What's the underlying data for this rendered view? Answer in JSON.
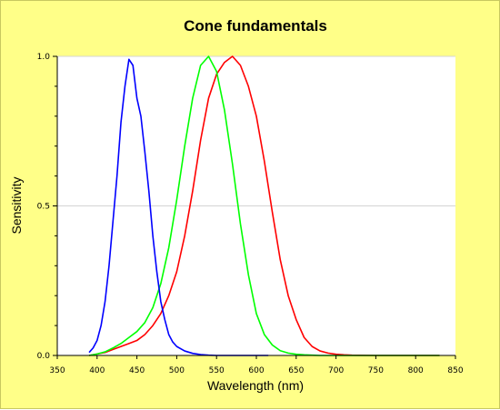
{
  "chart_data": {
    "type": "line",
    "title": "Cone fundamentals",
    "xlabel": "Wavelength (nm)",
    "ylabel": "Sensitivity",
    "xlim": [
      350,
      850
    ],
    "ylim": [
      0,
      1
    ],
    "x_ticks": [
      350,
      400,
      450,
      500,
      550,
      600,
      650,
      700,
      750,
      800,
      850
    ],
    "y_ticks": [
      {
        "value": 0,
        "label": "0.0"
      },
      {
        "value": 0.5,
        "label": "0.5"
      },
      {
        "value": 1,
        "label": "1.0"
      }
    ],
    "y_minor_ticks": [
      0.1,
      0.2,
      0.3,
      0.4,
      0.6,
      0.7,
      0.8,
      0.9
    ],
    "grid": true,
    "legend": "none",
    "series": [
      {
        "color": "#ff0000",
        "x": [
          390,
          400,
          410,
          420,
          430,
          440,
          450,
          460,
          470,
          480,
          490,
          500,
          510,
          520,
          530,
          540,
          550,
          560,
          570,
          580,
          590,
          600,
          610,
          620,
          630,
          640,
          650,
          660,
          670,
          680,
          690,
          700,
          710,
          720,
          750,
          800,
          830
        ],
        "y": [
          0.0,
          0.005,
          0.01,
          0.02,
          0.03,
          0.04,
          0.05,
          0.07,
          0.1,
          0.14,
          0.2,
          0.28,
          0.4,
          0.55,
          0.72,
          0.86,
          0.94,
          0.98,
          1.0,
          0.97,
          0.9,
          0.8,
          0.65,
          0.48,
          0.32,
          0.2,
          0.12,
          0.06,
          0.03,
          0.015,
          0.008,
          0.004,
          0.002,
          0.001,
          0.0,
          0.0,
          0.0
        ]
      },
      {
        "color": "#00ff00",
        "x": [
          390,
          400,
          410,
          420,
          430,
          440,
          450,
          460,
          470,
          480,
          490,
          500,
          510,
          520,
          530,
          540,
          550,
          560,
          570,
          580,
          590,
          600,
          610,
          620,
          630,
          640,
          650,
          660,
          670,
          680,
          690,
          700,
          710,
          720,
          750,
          800,
          830
        ],
        "y": [
          0.0,
          0.005,
          0.012,
          0.025,
          0.04,
          0.06,
          0.08,
          0.11,
          0.16,
          0.24,
          0.36,
          0.52,
          0.7,
          0.86,
          0.97,
          1.0,
          0.95,
          0.82,
          0.64,
          0.44,
          0.27,
          0.14,
          0.07,
          0.035,
          0.016,
          0.008,
          0.004,
          0.002,
          0.001,
          0.0,
          0.0,
          0.0,
          0.0,
          0.0,
          0.0,
          0.0,
          0.0
        ]
      },
      {
        "color": "#0000ff",
        "x": [
          390,
          395,
          400,
          405,
          410,
          415,
          420,
          425,
          430,
          435,
          440,
          445,
          450,
          455,
          460,
          465,
          470,
          475,
          480,
          485,
          490,
          495,
          500,
          510,
          520,
          530,
          540,
          550,
          560,
          570,
          580,
          590,
          600,
          615
        ],
        "y": [
          0.01,
          0.025,
          0.05,
          0.1,
          0.18,
          0.3,
          0.45,
          0.6,
          0.78,
          0.9,
          0.99,
          0.97,
          0.86,
          0.8,
          0.68,
          0.55,
          0.4,
          0.28,
          0.18,
          0.12,
          0.07,
          0.045,
          0.03,
          0.015,
          0.007,
          0.003,
          0.001,
          0.0,
          0.0,
          0.0,
          0.0,
          0.0,
          0.0,
          0.0
        ]
      }
    ]
  }
}
